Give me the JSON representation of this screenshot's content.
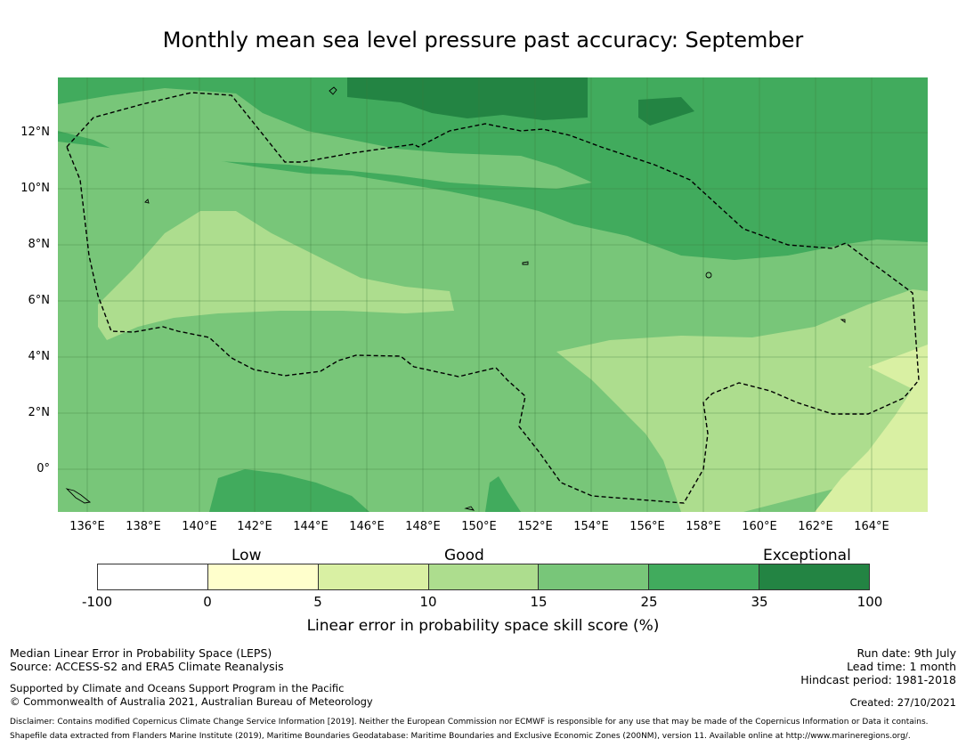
{
  "title": "Monthly mean sea level pressure past accuracy: September",
  "map": {
    "x_axis": [
      "136°E",
      "138°E",
      "140°E",
      "142°E",
      "144°E",
      "146°E",
      "148°E",
      "150°E",
      "152°E",
      "154°E",
      "156°E",
      "158°E",
      "160°E",
      "162°E",
      "164°E"
    ],
    "y_axis": [
      "12°N",
      "10°N",
      "8°N",
      "6°N",
      "4°N",
      "2°N",
      "0°"
    ]
  },
  "colorbar": {
    "categories": [
      "Low",
      "Good",
      "Exceptional"
    ],
    "ticks": [
      "-100",
      "0",
      "5",
      "10",
      "15",
      "25",
      "35",
      "100"
    ],
    "colors": [
      "#ffffff",
      "#ffffcc",
      "#d9f0a3",
      "#addd8e",
      "#78c679",
      "#41ab5d",
      "#238443"
    ],
    "label": "Linear error in probability space skill score (%)"
  },
  "footer": {
    "left1": "Median Linear Error in Probability Space (LEPS)",
    "left2": "Source: ACCESS-S2 and ERA5 Climate Reanalysis",
    "left3": "Supported by Climate and Oceans Support Program in the Pacific",
    "left4": "© Commonwealth of Australia 2021, Australian Bureau of Meteorology",
    "right1": "Run date: 9th July",
    "right2": "Lead time: 1 month",
    "right3": "Hindcast period: 1981-2018",
    "right4": "Created: 27/10/2021",
    "disclaimer": "Disclaimer: Contains modified Copernicus Climate Change Service Information [2019]. Neither the European Commission nor ECMWF is responsible for any use that may be made of the Copernicus Information or Data it contains.",
    "shapefile": "Shapefile data extracted from Flanders Marine Institute (2019), Maritime Boundaries Geodatabase: Maritime Boundaries and Exclusive Economic Zones (200NM), version 11. Available online at http://www.marineregions.org/."
  }
}
